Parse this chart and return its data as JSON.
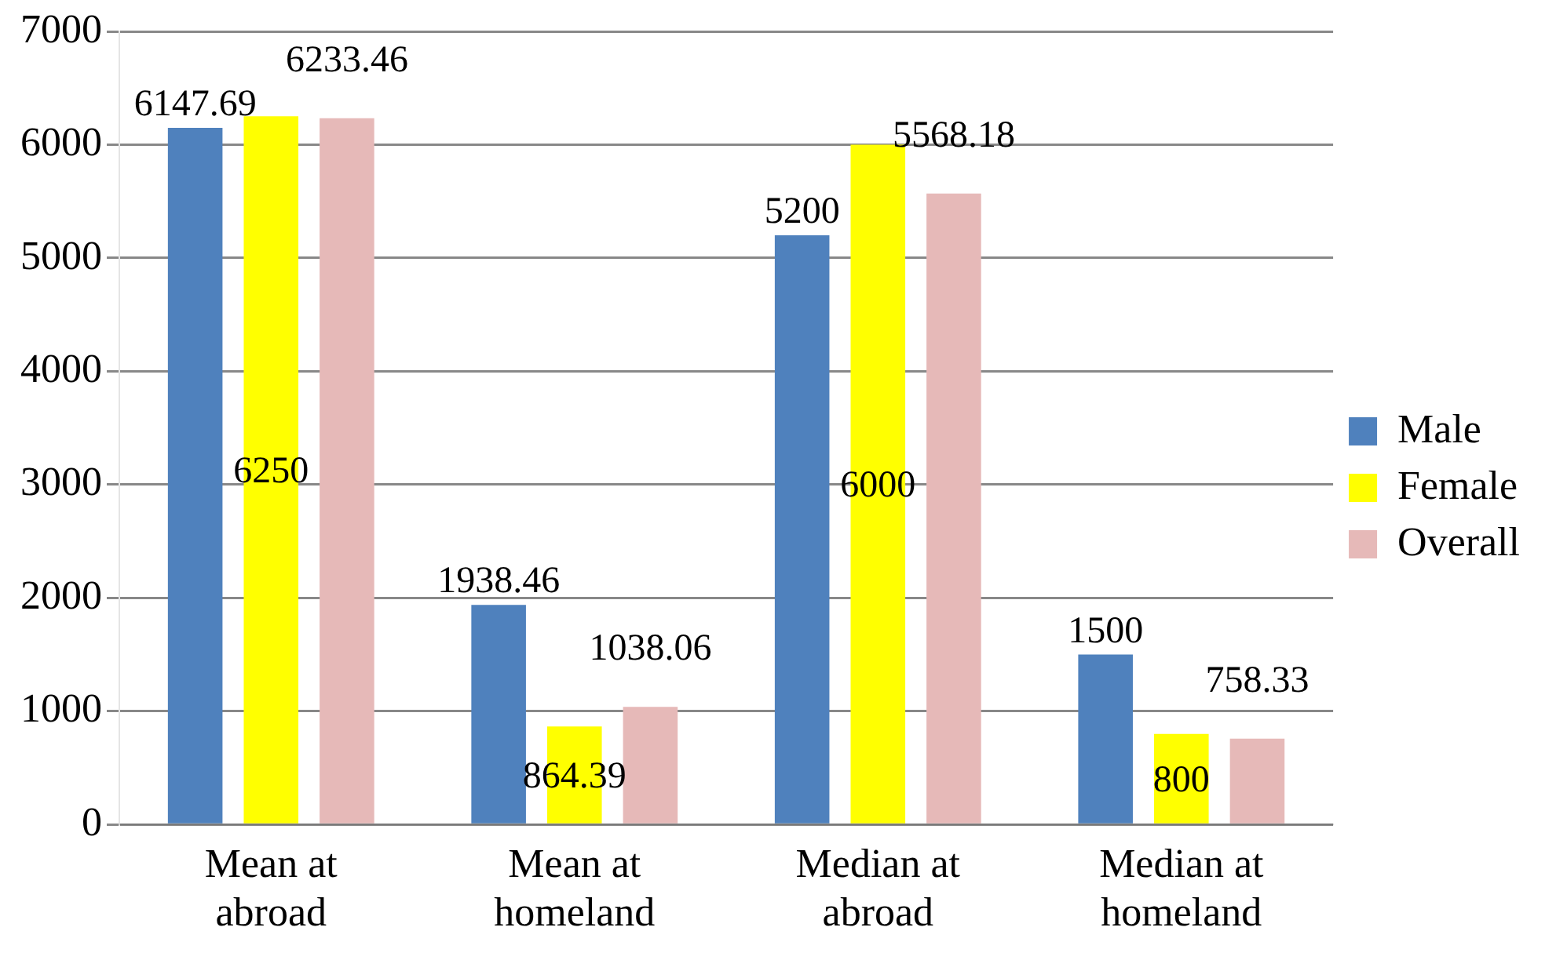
{
  "chart_data": {
    "type": "bar",
    "categories": [
      "Mean at abroad",
      "Mean at homeland",
      "Median at abroad",
      "Median at homeland"
    ],
    "series": [
      {
        "name": "Male",
        "color": "#4f81bd",
        "values": [
          6147.69,
          1938.46,
          5200,
          1500
        ]
      },
      {
        "name": "Female",
        "color": "#ffff00",
        "values": [
          6250,
          864.39,
          6000,
          800
        ]
      },
      {
        "name": "Overall",
        "color": "#e6b9b8",
        "values": [
          6233.46,
          1038.06,
          5568.18,
          758.33
        ]
      }
    ],
    "ylim": [
      0,
      7000
    ],
    "yticks": [
      0,
      1000,
      2000,
      3000,
      4000,
      5000,
      6000,
      7000
    ],
    "grid": "y",
    "legend": "right",
    "data_labels": true
  }
}
